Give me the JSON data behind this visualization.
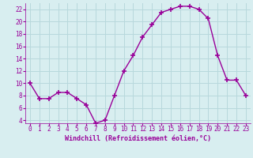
{
  "x": [
    0,
    1,
    2,
    3,
    4,
    5,
    6,
    7,
    8,
    9,
    10,
    11,
    12,
    13,
    14,
    15,
    16,
    17,
    18,
    19,
    20,
    21,
    22,
    23
  ],
  "y": [
    10,
    7.5,
    7.5,
    8.5,
    8.5,
    7.5,
    6.5,
    3.5,
    4,
    8,
    12,
    14.5,
    17.5,
    19.5,
    21.5,
    22,
    22.5,
    22.5,
    22,
    20.5,
    14.5,
    10.5,
    10.5,
    8
  ],
  "line_color": "#990099",
  "marker": "+",
  "marker_size": 4,
  "bg_color": "#d8eef0",
  "grid_color": "#b8d8dc",
  "xlabel": "Windchill (Refroidissement éolien,°C)",
  "ylim": [
    3.5,
    23
  ],
  "xlim": [
    -0.5,
    23.5
  ],
  "yticks": [
    4,
    6,
    8,
    10,
    12,
    14,
    16,
    18,
    20,
    22
  ],
  "xticks": [
    0,
    1,
    2,
    3,
    4,
    5,
    6,
    7,
    8,
    9,
    10,
    11,
    12,
    13,
    14,
    15,
    16,
    17,
    18,
    19,
    20,
    21,
    22,
    23
  ],
  "title_fontsize": 7,
  "xlabel_fontsize": 6,
  "tick_fontsize": 5.5,
  "linewidth": 1.0,
  "marker_color": "#990099"
}
